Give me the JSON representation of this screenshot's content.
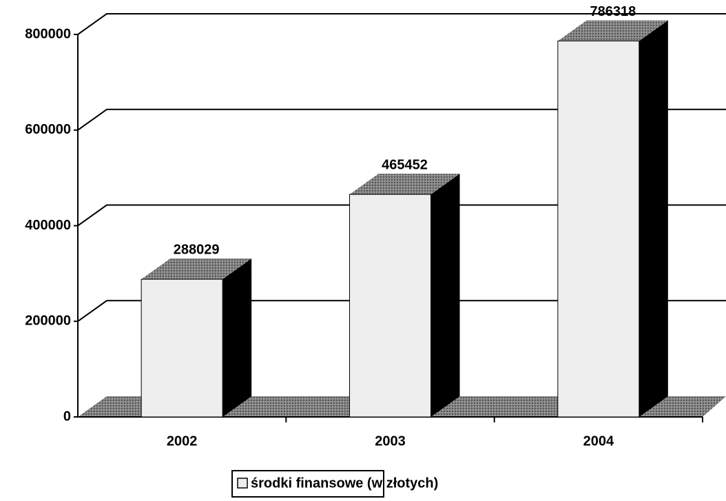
{
  "chart_data": {
    "type": "bar3d",
    "categories": [
      "2002",
      "2003",
      "2004"
    ],
    "series": [
      {
        "name": "środki finansowe (w złotych)",
        "color": "#eeeeee",
        "values": [
          288029,
          465452,
          786318
        ]
      }
    ],
    "ylim": [
      0,
      800000
    ],
    "yticks": [
      0,
      200000,
      400000,
      600000,
      800000
    ],
    "grid": true,
    "legend": "bottom"
  }
}
